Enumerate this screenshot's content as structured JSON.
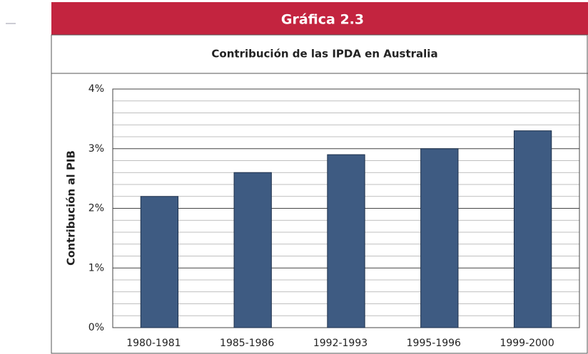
{
  "chart_data": {
    "type": "bar",
    "header": "Gráfica 2.3",
    "title": "Contribución de las IPDA en Australia",
    "y_label": "Contribución al PIB",
    "categories": [
      "1980-1981",
      "1985-1986",
      "1992-1993",
      "1995-1996",
      "1999-2000"
    ],
    "values": [
      2.2,
      2.6,
      2.9,
      3.0,
      3.3
    ],
    "color": "#3e5b82",
    "ylim": [
      0,
      4
    ],
    "yticks": [
      {
        "value": 0,
        "label": "0%"
      },
      {
        "value": 1,
        "label": "1%"
      },
      {
        "value": 2,
        "label": "2%"
      },
      {
        "value": 3,
        "label": "3%"
      },
      {
        "value": 4,
        "label": "4%"
      }
    ],
    "minor_yticks": [
      0.2,
      0.4,
      0.6,
      0.8,
      1.2,
      1.4,
      1.6,
      1.8,
      2.2,
      2.4,
      2.6,
      2.8,
      3.2,
      3.4,
      3.6,
      3.8
    ],
    "grid": true
  }
}
